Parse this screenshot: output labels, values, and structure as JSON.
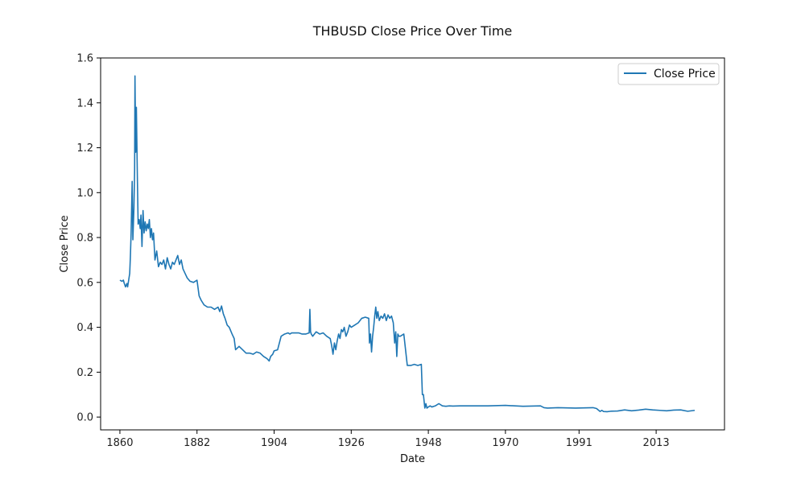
{
  "chart_data": {
    "type": "line",
    "title": "THBUSD Close Price Over Time",
    "xlabel": "Date",
    "ylabel": "Close Price",
    "xlim": [
      1854.5,
      2032.5
    ],
    "ylim": [
      -0.057,
      1.6
    ],
    "x_ticks": [
      1860,
      1882,
      1904,
      1926,
      1948,
      1970,
      1991,
      2013
    ],
    "x_tick_labels": [
      "1860",
      "1882",
      "1904",
      "1926",
      "1948",
      "1970",
      "1991",
      "2013"
    ],
    "y_ticks": [
      0.0,
      0.2,
      0.4,
      0.6,
      0.8,
      1.0,
      1.2,
      1.4,
      1.6
    ],
    "y_tick_labels": [
      "0.0",
      "0.2",
      "0.4",
      "0.6",
      "0.8",
      "1.0",
      "1.2",
      "1.4",
      "1.6"
    ],
    "grid": false,
    "legend": {
      "position": "top-right"
    },
    "series": [
      {
        "name": "Close Price",
        "color": "#1f77b4",
        "x": [
          1860.0,
          1860.6,
          1861.0,
          1861.2,
          1861.6,
          1862.0,
          1862.2,
          1862.6,
          1862.8,
          1863.0,
          1863.2,
          1863.5,
          1863.7,
          1864.0,
          1864.2,
          1864.3,
          1864.5,
          1864.7,
          1865.0,
          1865.2,
          1865.5,
          1865.8,
          1866.0,
          1866.3,
          1866.6,
          1866.9,
          1867.2,
          1867.5,
          1867.8,
          1868.1,
          1868.4,
          1868.7,
          1869.0,
          1869.3,
          1869.6,
          1870.0,
          1870.5,
          1871.0,
          1871.5,
          1872.0,
          1872.5,
          1873.0,
          1873.5,
          1874.0,
          1874.5,
          1875.0,
          1875.5,
          1876.0,
          1876.5,
          1877.0,
          1877.5,
          1878.0,
          1878.6,
          1879.2,
          1880.0,
          1881.0,
          1882.0,
          1882.6,
          1883.2,
          1884.0,
          1885.0,
          1886.0,
          1887.0,
          1888.0,
          1888.5,
          1889.0,
          1889.5,
          1890.0,
          1890.6,
          1891.2,
          1892.0,
          1892.6,
          1893.0,
          1894.0,
          1895.0,
          1896.0,
          1897.0,
          1898.0,
          1899.0,
          1900.0,
          1901.0,
          1902.0,
          1902.6,
          1903.0,
          1903.6,
          1904.0,
          1905.0,
          1906.0,
          1907.0,
          1908.0,
          1908.5,
          1909.0,
          1910.0,
          1911.0,
          1912.0,
          1913.0,
          1914.0,
          1914.2,
          1914.4,
          1914.6,
          1915.0,
          1916.0,
          1917.0,
          1918.0,
          1919.0,
          1920.0,
          1920.4,
          1920.8,
          1921.2,
          1921.6,
          1922.0,
          1922.4,
          1922.8,
          1923.2,
          1923.6,
          1924.0,
          1924.5,
          1925.0,
          1925.5,
          1926.0,
          1927.0,
          1928.0,
          1929.0,
          1930.0,
          1931.0,
          1931.2,
          1931.5,
          1931.8,
          1932.1,
          1932.4,
          1932.7,
          1933.0,
          1933.3,
          1933.6,
          1934.0,
          1934.5,
          1935.0,
          1935.5,
          1936.0,
          1936.5,
          1937.0,
          1937.5,
          1938.0,
          1938.4,
          1938.7,
          1939.0,
          1939.3,
          1939.6,
          1940.0,
          1941.0,
          1942.0,
          1943.0,
          1944.0,
          1945.0,
          1946.0,
          1946.3,
          1946.6,
          1947.0,
          1947.3,
          1947.6,
          1948.0,
          1948.5,
          1949.0,
          1950.0,
          1951.0,
          1952.0,
          1953.0,
          1954.0,
          1955.0,
          1957.0,
          1960.0,
          1965.0,
          1970.0,
          1975.0,
          1980.0,
          1981.0,
          1982.0,
          1985.0,
          1990.0,
          1995.0,
          1996.0,
          1997.0,
          1997.5,
          1998.0,
          1999.0,
          2000.0,
          2002.0,
          2004.0,
          2006.0,
          2008.0,
          2010.0,
          2012.0,
          2014.0,
          2016.0,
          2018.0,
          2020.0,
          2022.0,
          2024.0
        ],
        "y": [
          0.61,
          0.605,
          0.61,
          0.598,
          0.58,
          0.595,
          0.58,
          0.62,
          0.64,
          0.72,
          0.82,
          1.05,
          0.79,
          0.93,
          1.1,
          1.52,
          1.18,
          1.38,
          1.05,
          0.86,
          0.88,
          0.84,
          0.9,
          0.76,
          0.92,
          0.82,
          0.87,
          0.83,
          0.86,
          0.84,
          0.88,
          0.8,
          0.84,
          0.79,
          0.82,
          0.7,
          0.74,
          0.67,
          0.69,
          0.68,
          0.7,
          0.66,
          0.71,
          0.68,
          0.66,
          0.69,
          0.68,
          0.7,
          0.72,
          0.68,
          0.7,
          0.66,
          0.64,
          0.62,
          0.605,
          0.6,
          0.61,
          0.54,
          0.52,
          0.5,
          0.49,
          0.49,
          0.48,
          0.49,
          0.47,
          0.495,
          0.46,
          0.44,
          0.41,
          0.4,
          0.37,
          0.35,
          0.3,
          0.315,
          0.3,
          0.285,
          0.285,
          0.28,
          0.29,
          0.285,
          0.27,
          0.26,
          0.25,
          0.27,
          0.28,
          0.295,
          0.3,
          0.36,
          0.37,
          0.375,
          0.37,
          0.375,
          0.375,
          0.375,
          0.37,
          0.37,
          0.375,
          0.48,
          0.38,
          0.37,
          0.36,
          0.38,
          0.37,
          0.375,
          0.36,
          0.35,
          0.32,
          0.28,
          0.33,
          0.3,
          0.34,
          0.37,
          0.35,
          0.39,
          0.38,
          0.4,
          0.36,
          0.38,
          0.41,
          0.4,
          0.41,
          0.42,
          0.44,
          0.445,
          0.44,
          0.33,
          0.37,
          0.29,
          0.36,
          0.4,
          0.45,
          0.49,
          0.44,
          0.47,
          0.43,
          0.45,
          0.44,
          0.46,
          0.43,
          0.455,
          0.44,
          0.45,
          0.42,
          0.33,
          0.38,
          0.27,
          0.37,
          0.36,
          0.36,
          0.37,
          0.23,
          0.23,
          0.235,
          0.23,
          0.235,
          0.1,
          0.1,
          0.04,
          0.06,
          0.04,
          0.045,
          0.05,
          0.045,
          0.05,
          0.06,
          0.05,
          0.048,
          0.05,
          0.049,
          0.05,
          0.05,
          0.05,
          0.052,
          0.048,
          0.05,
          0.042,
          0.04,
          0.042,
          0.04,
          0.042,
          0.038,
          0.025,
          0.03,
          0.025,
          0.024,
          0.026,
          0.027,
          0.032,
          0.028,
          0.031,
          0.035,
          0.032,
          0.03,
          0.028,
          0.031,
          0.032,
          0.026,
          0.03
        ]
      }
    ]
  }
}
